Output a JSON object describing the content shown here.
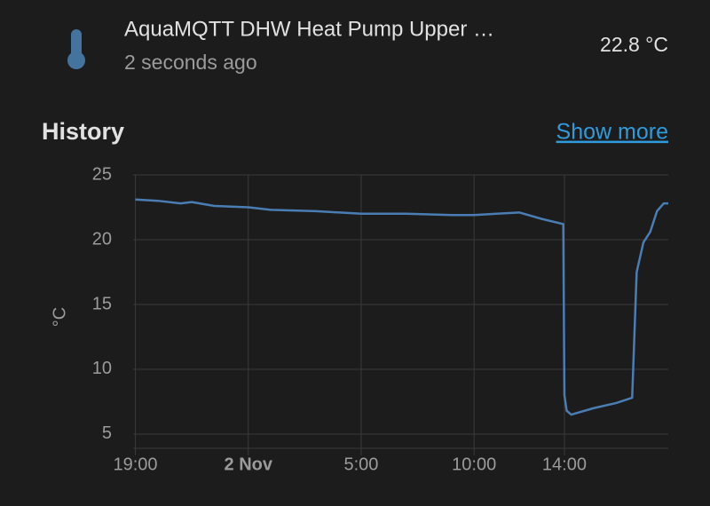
{
  "header": {
    "title": "AquaMQTT DHW Heat Pump Upper …",
    "subtitle": "2 seconds ago",
    "state": "22.8 °C"
  },
  "section": {
    "title": "History",
    "link": "Show more"
  },
  "chart_data": {
    "type": "line",
    "y_label": "°C",
    "x": [
      19.0,
      20.0,
      21.0,
      21.5,
      22.5,
      24.0,
      25.0,
      27.0,
      29.0,
      31.0,
      33.0,
      34.0,
      35.0,
      36.0,
      37.0,
      37.95,
      38.0,
      38.1,
      38.3,
      39.3,
      40.3,
      41.0,
      41.2,
      41.5,
      41.8,
      42.1,
      42.4,
      42.6
    ],
    "series": [
      {
        "name": "AquaMQTT DHW Heat Pump Upper …",
        "color": "#4a7db3",
        "values": [
          23.1,
          23.0,
          22.8,
          22.9,
          22.6,
          22.5,
          22.3,
          22.2,
          22.0,
          22.0,
          21.9,
          21.9,
          22.0,
          22.1,
          21.6,
          21.2,
          8.0,
          6.8,
          6.5,
          7.0,
          7.4,
          7.8,
          17.5,
          19.8,
          20.6,
          22.2,
          22.8,
          22.8
        ]
      }
    ],
    "xlim": [
      18.9,
      42.6
    ],
    "xticks": [
      {
        "value": 19,
        "label": "19:00"
      },
      {
        "value": 24,
        "label": "2 Nov"
      },
      {
        "value": 29,
        "label": "5:00"
      },
      {
        "value": 34,
        "label": "10:00"
      },
      {
        "value": 38,
        "label": "14:00"
      }
    ],
    "ylim": [
      3.9,
      25
    ],
    "yticks": [
      5,
      10,
      15,
      20,
      25
    ],
    "grid": true
  }
}
